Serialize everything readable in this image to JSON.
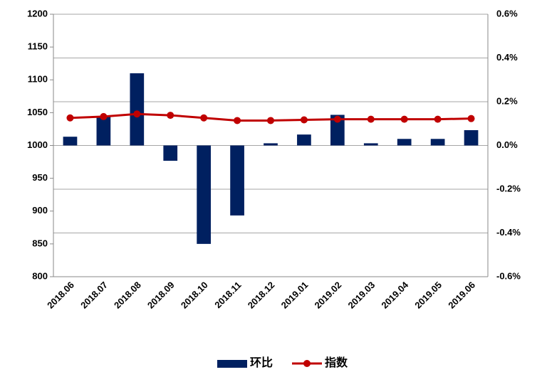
{
  "chart_data": {
    "type": "bar-line",
    "categories": [
      "2018.06",
      "2018.07",
      "2018.08",
      "2018.09",
      "2018.10",
      "2018.11",
      "2018.12",
      "2019.01",
      "2019.02",
      "2019.03",
      "2019.04",
      "2019.05",
      "2019.06"
    ],
    "series": [
      {
        "name": "环比",
        "type": "bar",
        "axis": "y2",
        "color": "#002060",
        "values": [
          0.04,
          0.13,
          0.33,
          -0.07,
          -0.45,
          -0.32,
          0.01,
          0.05,
          0.14,
          0.01,
          0.03,
          0.03,
          0.07
        ]
      },
      {
        "name": "指数",
        "type": "line",
        "color": "#c00000",
        "values": [
          1042,
          1044,
          1048,
          1046,
          1042,
          1038,
          1038,
          1039,
          1040,
          1040,
          1040,
          1040,
          1041
        ]
      }
    ],
    "ylim": [
      800,
      1200
    ],
    "yticks": [
      800,
      850,
      900,
      950,
      1000,
      1050,
      1100,
      1150,
      1200
    ],
    "y2lim": [
      -0.6,
      0.6
    ],
    "y2ticks": [
      {
        "value": -0.6,
        "label": "-0.6%"
      },
      {
        "value": -0.4,
        "label": "-0.4%"
      },
      {
        "value": -0.2,
        "label": "-0.2%"
      },
      {
        "value": 0,
        "label": "0.0%"
      },
      {
        "value": 0.2,
        "label": "0.2%"
      },
      {
        "value": 0.4,
        "label": "0.4%"
      },
      {
        "value": 0.6,
        "label": "0.6%"
      }
    ],
    "grid": true,
    "legend": "bottom"
  }
}
